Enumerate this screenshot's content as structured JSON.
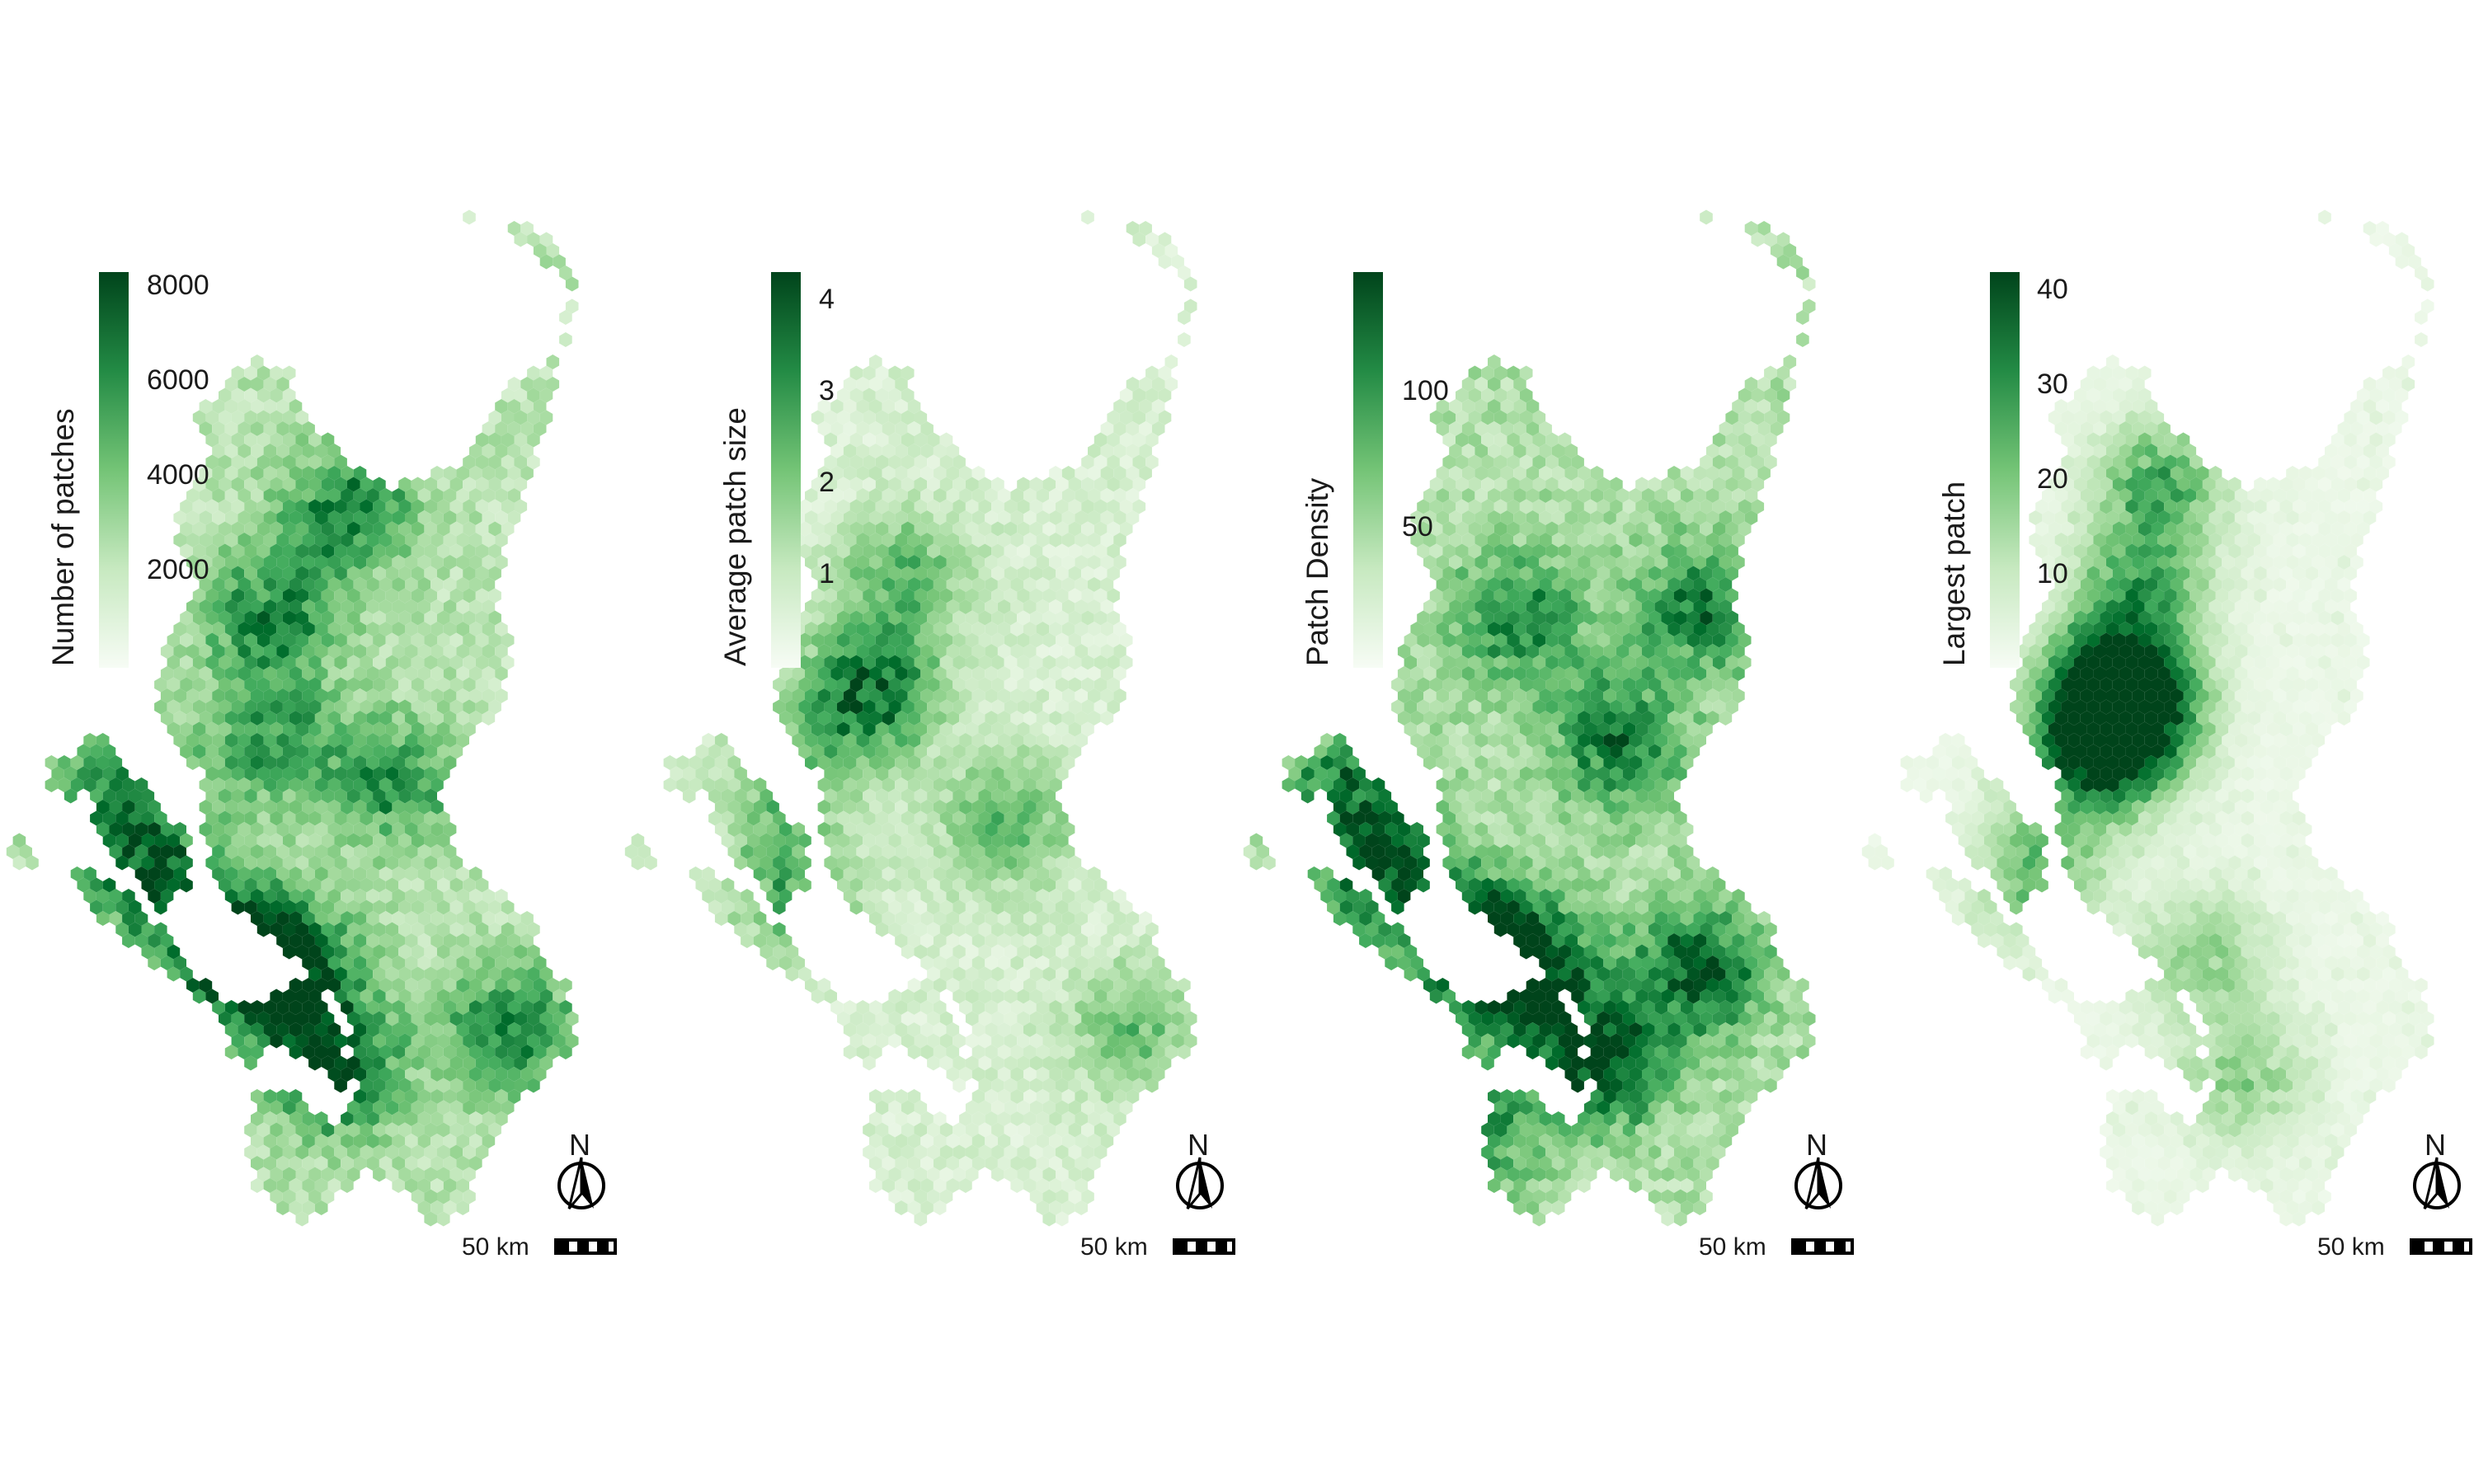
{
  "colors": {
    "low": "#f7fcf5",
    "mid": "#74c476",
    "high": "#00441b"
  },
  "panels": [
    {
      "legend_title": "Number of patches",
      "ticks": [
        "8000",
        "6000",
        "4000",
        "2000"
      ]
    },
    {
      "legend_title": "Average patch size",
      "ticks": [
        "4",
        "3",
        "2",
        "1"
      ]
    },
    {
      "legend_title": "Patch Density",
      "ticks": [
        "100",
        "50"
      ]
    },
    {
      "legend_title": "Largest patch",
      "ticks": [
        "40",
        "30",
        "20",
        "10"
      ]
    }
  ],
  "north_label": "N",
  "scale_label": "50 km"
}
